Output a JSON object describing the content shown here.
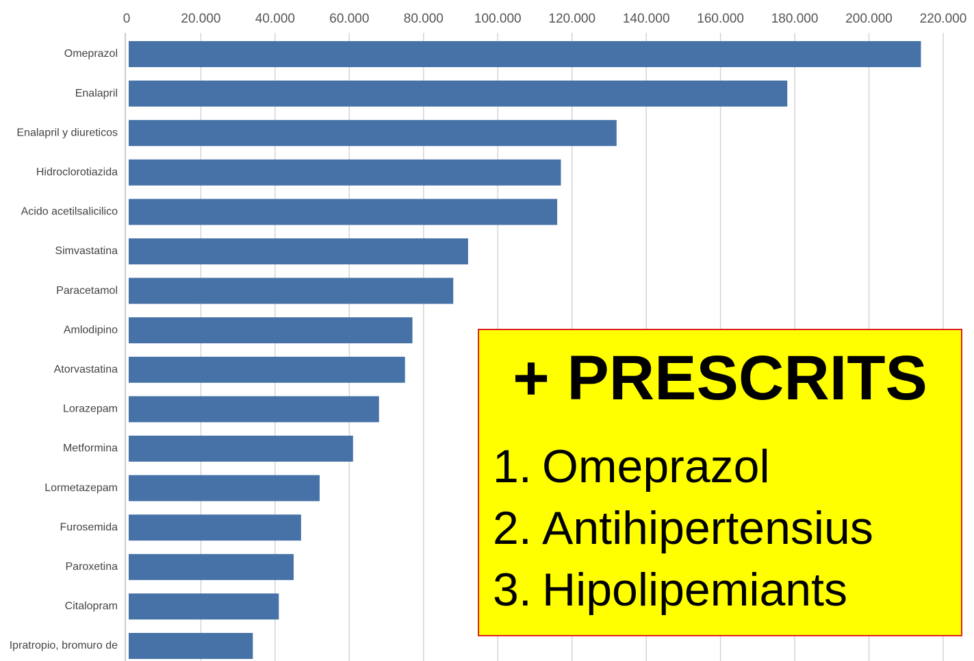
{
  "chart_data": {
    "type": "bar",
    "orientation": "horizontal",
    "categories": [
      "Omeprazol",
      "Enalapril",
      "Enalapril y diureticos",
      "Hidroclorotiazida",
      "Acido acetilsalicilico",
      "Simvastatina",
      "Paracetamol",
      "Amlodipino",
      "Atorvastatina",
      "Lorazepam",
      "Metformina",
      "Lormetazepam",
      "Furosemida",
      "Paroxetina",
      "Citalopram",
      "Ipratropio, bromuro de"
    ],
    "values": [
      214000,
      178000,
      132000,
      117000,
      116000,
      92000,
      88000,
      77000,
      75000,
      68000,
      61000,
      52000,
      47000,
      45000,
      41000,
      34000
    ],
    "color": "#4672a8",
    "xlim": [
      0,
      220000
    ],
    "xticks": [
      0,
      {
        "value": 20000,
        "label": "20.000"
      },
      {
        "value": 40000,
        "label": "40.000"
      },
      {
        "value": 60000,
        "label": "60.000"
      },
      {
        "value": 80000,
        "label": "80.000"
      },
      {
        "value": 100000,
        "label": "100.000"
      },
      {
        "value": 120000,
        "label": "120.000"
      },
      {
        "value": 140000,
        "label": "140.000"
      },
      {
        "value": 160000,
        "label": "160.000"
      },
      {
        "value": 180000,
        "label": "180.000"
      },
      {
        "value": 200000,
        "label": "200.000"
      },
      {
        "value": 220000,
        "label": "220.000"
      }
    ],
    "grid": true,
    "annotation": {
      "title": "+ PRESCRITS",
      "items": [
        {
          "number": "1.",
          "text": "Omeprazol"
        },
        {
          "number": "2.",
          "text": "Antihipertensius"
        },
        {
          "number": "3.",
          "text": "Hipolipemiants"
        }
      ]
    }
  }
}
